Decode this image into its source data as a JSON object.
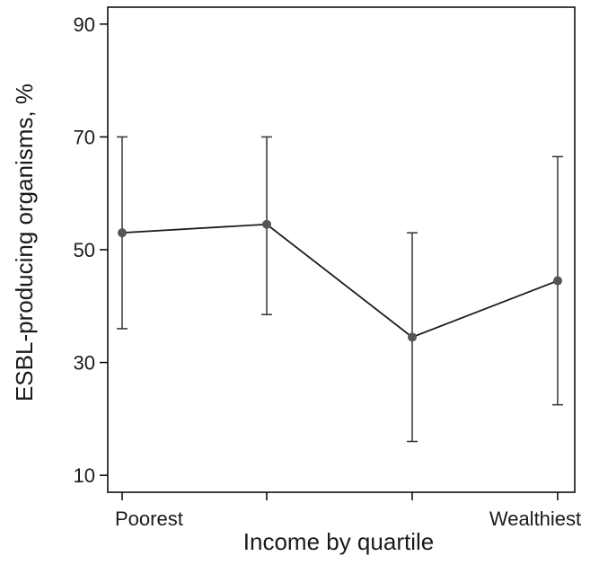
{
  "chart_data": {
    "type": "line",
    "title": "",
    "xlabel": "Income by quartile",
    "ylabel": "ESBL-producing organisms, %",
    "ylim": [
      7,
      93
    ],
    "yticks": [
      10,
      30,
      50,
      70,
      90
    ],
    "categories": [
      "Poorest",
      "",
      "",
      "Wealthiest"
    ],
    "series": [
      {
        "values": [
          53,
          54.5,
          34.5,
          44.5
        ],
        "lower": [
          36,
          38.5,
          16,
          22.5
        ],
        "upper": [
          70,
          70,
          53,
          66.5
        ]
      }
    ],
    "grid": false,
    "legend": "none",
    "colors": {
      "line": "#1a1a1a",
      "marker": "#555555",
      "errorbar": "#333333",
      "axis": "#000000"
    }
  }
}
